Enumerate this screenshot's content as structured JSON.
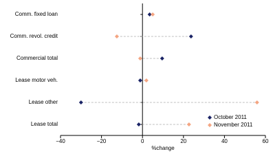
{
  "chart_data": {
    "type": "dot",
    "x_label": "%change",
    "categories": [
      "Comm. fixed loan",
      "Comm. revol. credit",
      "Commercial total",
      "Lease motor veh.",
      "Lease other",
      "Lease total"
    ],
    "series": [
      {
        "name": "October 2011",
        "color": "#1b2466",
        "values": [
          3.5,
          23.7,
          9.6,
          -1.1,
          -30,
          -1.8
        ]
      },
      {
        "name": "November 2011",
        "color": "#f4a582",
        "values": [
          5,
          -12.5,
          -1.1,
          1.9,
          55.9,
          22.7
        ]
      }
    ],
    "xlim": [
      -40,
      60
    ],
    "xticks": [
      {
        "value": -40,
        "label": "−40"
      },
      {
        "value": -20,
        "label": "−20"
      },
      0,
      20,
      40,
      60
    ],
    "legend": "lower right"
  }
}
